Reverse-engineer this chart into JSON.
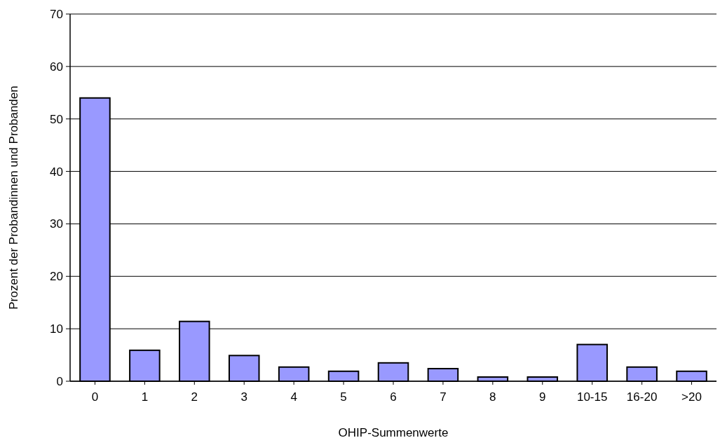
{
  "chart_data": {
    "type": "bar",
    "xlabel": "OHIP-Summenwerte",
    "ylabel": "Prozent der Probandinnen und Probanden",
    "categories": [
      "0",
      "1",
      "2",
      "3",
      "4",
      "5",
      "6",
      "7",
      "8",
      "9",
      "10-15",
      "16-20",
      ">20"
    ],
    "values": [
      54,
      5.9,
      11.4,
      4.9,
      2.7,
      1.9,
      3.5,
      2.4,
      0.8,
      0.8,
      7.0,
      2.7,
      1.9
    ],
    "color": "#9999ff",
    "ylim": [
      0,
      70
    ],
    "yticks": [
      0,
      10,
      20,
      30,
      40,
      50,
      60,
      70
    ],
    "grid": "y"
  }
}
